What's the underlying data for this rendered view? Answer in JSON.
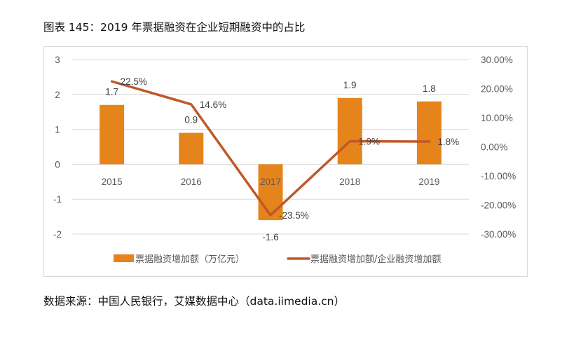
{
  "title": "图表 145：2019 年票据融资在企业短期融资中的占比",
  "source": "数据来源：中国人民银行，艾媒数据中心（data.iimedia.cn）",
  "colors": {
    "bar": "#E5841A",
    "line": "#C0582A",
    "grid": "#d9d9d9",
    "frame": "#d9d9d9"
  },
  "chart_data": {
    "type": "bar+line",
    "title": "图表 145：2019 年票据融资在企业短期融资中的占比",
    "categories": [
      "2015",
      "2016",
      "2017",
      "2018",
      "2019"
    ],
    "series": [
      {
        "name": "票据融资增加额（万亿元）",
        "type": "bar",
        "axis": "left",
        "values": [
          1.7,
          0.9,
          -1.6,
          1.9,
          1.8
        ],
        "labels": [
          "1.7",
          "0.9",
          "-1.6",
          "1.9",
          "1.8"
        ]
      },
      {
        "name": "票据融资增加额/企业融资增加额",
        "type": "line",
        "axis": "right",
        "values": [
          22.5,
          14.6,
          -23.5,
          1.9,
          1.8
        ],
        "labels": [
          "22.5%",
          "14.6%",
          "-23.5%",
          "1.9%",
          "1.8%"
        ]
      }
    ],
    "left_axis": {
      "ylim": [
        -2,
        3
      ],
      "ticks": [
        "3",
        "2",
        "1",
        "0",
        "-1",
        "-2"
      ]
    },
    "right_axis": {
      "ylim": [
        -30,
        30
      ],
      "ticks": [
        "30.00%",
        "20.00%",
        "10.00%",
        "0.00%",
        "-10.00%",
        "-20.00%",
        "-30.00%"
      ]
    },
    "grid": true,
    "legend_position": "bottom",
    "xlabel": "",
    "ylabel": ""
  }
}
